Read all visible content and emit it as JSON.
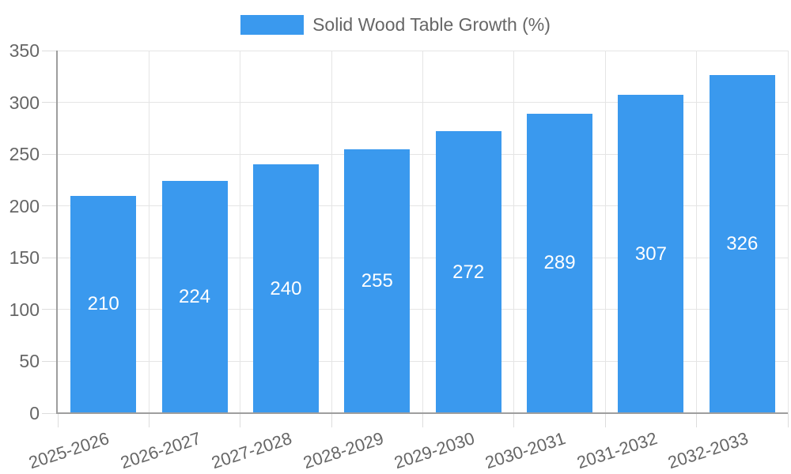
{
  "legend": {
    "label": "Solid Wood Table Growth (%)"
  },
  "chart_data": {
    "type": "bar",
    "title": "Solid Wood Table Growth (%)",
    "categories": [
      "2025-2026",
      "2026-2027",
      "2027-2028",
      "2028-2029",
      "2029-2030",
      "2030-2031",
      "2031-2032",
      "2032-2033"
    ],
    "values": [
      210,
      224,
      240,
      255,
      272,
      289,
      307,
      326
    ],
    "series": [
      {
        "name": "Solid Wood Table Growth (%)",
        "values": [
          210,
          224,
          240,
          255,
          272,
          289,
          307,
          326
        ]
      }
    ],
    "xlabel": "",
    "ylabel": "",
    "ylim": [
      0,
      350
    ],
    "yticks": [
      0,
      50,
      100,
      150,
      200,
      250,
      300,
      350
    ],
    "grid": true,
    "legend_position": "top",
    "bar_labels_inside": true,
    "bar_color": "#3a99ee",
    "bar_label_color": "#ffffff",
    "tick_label_color": "#666666",
    "grid_color": "#e5e5e5",
    "tick_mark_color": "#dddddd",
    "axis_color": "#9e9e9e",
    "background_color": "#ffffff"
  }
}
